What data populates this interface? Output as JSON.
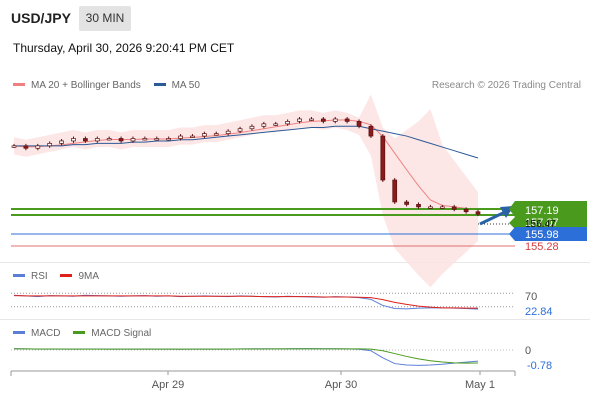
{
  "header": {
    "pair": "USD/JPY",
    "timeframe": "30 MIN",
    "datetime": "Thursday, April 30, 2026 9:20:41 PM CET"
  },
  "price_legend": [
    {
      "label": "MA 20 + Bollinger Bands",
      "color": "#f08080"
    },
    {
      "label": "MA 50",
      "color": "#2c5a96"
    }
  ],
  "rsi_legend": [
    {
      "label": "RSI",
      "color": "#5b7fd6"
    },
    {
      "label": "9MA",
      "color": "#e0201a"
    }
  ],
  "macd_legend": [
    {
      "label": "MACD",
      "color": "#5b7fd6"
    },
    {
      "label": "MACD Signal",
      "color": "#4a9a1e"
    }
  ],
  "credit": "Research © 2026 Trading Central",
  "colors": {
    "resistance": "#4a9a1e",
    "support": "#2d6fd8",
    "bear_line": "#e07070",
    "candle_up": "#ffffff",
    "candle_down": "#8b1a1a",
    "band_fill": "#fde2e2",
    "arrow": "#2a62a8"
  },
  "chart_data": [
    {
      "type": "candlestick",
      "title": "USD/JPY",
      "x_tick_labels": [
        "Apr 29",
        "Apr 30",
        "May 1"
      ],
      "levels": [
        {
          "value": "157.19",
          "kind": "resistance",
          "color": "#4a9a1e"
        },
        {
          "value": "157.07",
          "kind": "resistance",
          "color": "#4a9a1e"
        },
        {
          "value": "155.98",
          "kind": "support",
          "color": "#2d6fd8"
        },
        {
          "value": "155.28",
          "kind": "support",
          "color": "#e07070"
        }
      ],
      "last_price": "156.47",
      "ylim": [
        154.5,
        161.3
      ],
      "close_series": [
        159.3,
        159.2,
        159.3,
        159.4,
        159.5,
        159.6,
        159.5,
        159.6,
        159.6,
        159.5,
        159.6,
        159.6,
        159.6,
        159.6,
        159.7,
        159.7,
        159.8,
        159.8,
        159.9,
        160.0,
        160.1,
        160.2,
        160.2,
        160.3,
        160.4,
        160.4,
        160.3,
        160.4,
        160.3,
        160.1,
        159.7,
        157.9,
        157.0,
        156.9,
        156.8,
        156.8,
        156.8,
        156.7,
        156.6,
        156.5
      ],
      "ma50_series": [
        159.3,
        159.3,
        159.3,
        159.3,
        159.3,
        159.35,
        159.35,
        159.4,
        159.4,
        159.4,
        159.45,
        159.45,
        159.5,
        159.5,
        159.55,
        159.55,
        159.6,
        159.65,
        159.7,
        159.75,
        159.8,
        159.85,
        159.9,
        159.95,
        160.0,
        160.05,
        160.05,
        160.1,
        160.1,
        160.1,
        160.0,
        159.9,
        159.8,
        159.7,
        159.55,
        159.4,
        159.25,
        159.1,
        158.95,
        158.8
      ]
    },
    {
      "type": "line",
      "title": "RSI",
      "levels": [
        "70",
        "22.84"
      ],
      "ylim": [
        0,
        100
      ],
      "series": [
        {
          "name": "RSI",
          "values": [
            64,
            62,
            60,
            63,
            62,
            61,
            64,
            63,
            62,
            61,
            62,
            63,
            61,
            62,
            60,
            61,
            62,
            61,
            60,
            62,
            61,
            60,
            59,
            61,
            60,
            59,
            58,
            60,
            59,
            57,
            52,
            34,
            25,
            24,
            26,
            27,
            27,
            26,
            25,
            23
          ]
        },
        {
          "name": "9MA",
          "values": [
            63,
            62,
            62,
            62,
            62,
            62,
            62,
            62,
            62,
            62,
            62,
            62,
            62,
            62,
            61,
            61,
            61,
            61,
            61,
            61,
            61,
            60,
            60,
            60,
            60,
            60,
            59,
            59,
            59,
            58,
            57,
            51,
            43,
            37,
            32,
            29,
            27,
            27,
            26,
            26
          ]
        }
      ]
    },
    {
      "type": "line",
      "title": "MACD",
      "levels": [
        "0",
        "-0.78"
      ],
      "series": [
        {
          "name": "MACD",
          "values": [
            0.1,
            0.08,
            0.06,
            0.07,
            0.06,
            0.06,
            0.07,
            0.07,
            0.06,
            0.06,
            0.06,
            0.07,
            0.06,
            0.06,
            0.05,
            0.06,
            0.07,
            0.06,
            0.06,
            0.08,
            0.09,
            0.09,
            0.08,
            0.09,
            0.1,
            0.1,
            0.09,
            0.09,
            0.08,
            0.05,
            -0.05,
            -0.55,
            -0.95,
            -1.05,
            -1.08,
            -1.05,
            -1.0,
            -0.92,
            -0.85,
            -0.78
          ]
        },
        {
          "name": "MACD Signal",
          "values": [
            0.08,
            0.08,
            0.07,
            0.07,
            0.07,
            0.06,
            0.06,
            0.06,
            0.06,
            0.06,
            0.06,
            0.06,
            0.06,
            0.06,
            0.06,
            0.06,
            0.06,
            0.06,
            0.06,
            0.07,
            0.07,
            0.07,
            0.08,
            0.08,
            0.08,
            0.08,
            0.08,
            0.08,
            0.08,
            0.08,
            0.06,
            -0.05,
            -0.25,
            -0.45,
            -0.62,
            -0.75,
            -0.84,
            -0.9,
            -0.92,
            -0.91
          ]
        }
      ]
    }
  ]
}
